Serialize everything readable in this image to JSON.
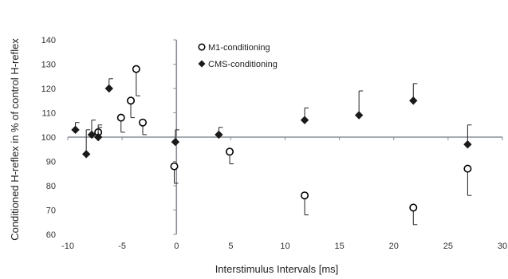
{
  "chart_data": {
    "type": "scatter",
    "xlabel": "Interstimulus Intervals [ms]",
    "ylabel": "Conditioned H-reflex in % of control H-reflex",
    "xlim": [
      -10,
      30
    ],
    "ylim": [
      60,
      140
    ],
    "x_ticks": [
      -10,
      -5,
      0,
      5,
      10,
      15,
      20,
      25,
      30
    ],
    "y_ticks": [
      60,
      70,
      80,
      90,
      100,
      110,
      120,
      130,
      140
    ],
    "reference_line_y": 100,
    "grid": false,
    "legend_position": "top-center",
    "series": [
      {
        "name": "M1-conditioning",
        "marker": "open-circle",
        "color": "#000000",
        "points": [
          {
            "x": -7.2,
            "y": 102,
            "err_dir": "up",
            "err": 3
          },
          {
            "x": -5.1,
            "y": 108,
            "err_dir": "down",
            "err": 6
          },
          {
            "x": -4.2,
            "y": 115,
            "err_dir": "down",
            "err": 7
          },
          {
            "x": -3.7,
            "y": 128,
            "err_dir": "down",
            "err": 11
          },
          {
            "x": -3.1,
            "y": 106,
            "err_dir": "down",
            "err": 5
          },
          {
            "x": -0.2,
            "y": 88,
            "err_dir": "down",
            "err": 7
          },
          {
            "x": 4.9,
            "y": 94,
            "err_dir": "down",
            "err": 5
          },
          {
            "x": 11.8,
            "y": 76,
            "err_dir": "down",
            "err": 8
          },
          {
            "x": 21.8,
            "y": 71,
            "err_dir": "down",
            "err": 7
          },
          {
            "x": 26.8,
            "y": 87,
            "err_dir": "down",
            "err": 11
          }
        ]
      },
      {
        "name": "CMS-conditioning",
        "marker": "filled-diamond",
        "color": "#1a1a1a",
        "points": [
          {
            "x": -9.3,
            "y": 103,
            "err_dir": "up",
            "err": 3
          },
          {
            "x": -8.3,
            "y": 93,
            "err_dir": "up",
            "err": 10
          },
          {
            "x": -7.8,
            "y": 101,
            "err_dir": "up",
            "err": 6
          },
          {
            "x": -7.2,
            "y": 100,
            "err_dir": "up",
            "err": 4
          },
          {
            "x": -6.2,
            "y": 120,
            "err_dir": "up",
            "err": 4
          },
          {
            "x": -0.1,
            "y": 98,
            "err_dir": "up",
            "err": 5
          },
          {
            "x": 3.9,
            "y": 101,
            "err_dir": "up",
            "err": 3
          },
          {
            "x": 11.8,
            "y": 107,
            "err_dir": "up",
            "err": 5
          },
          {
            "x": 16.8,
            "y": 109,
            "err_dir": "up",
            "err": 10
          },
          {
            "x": 21.8,
            "y": 115,
            "err_dir": "up",
            "err": 7
          },
          {
            "x": 26.8,
            "y": 97,
            "err_dir": "up",
            "err": 8
          }
        ]
      }
    ]
  }
}
